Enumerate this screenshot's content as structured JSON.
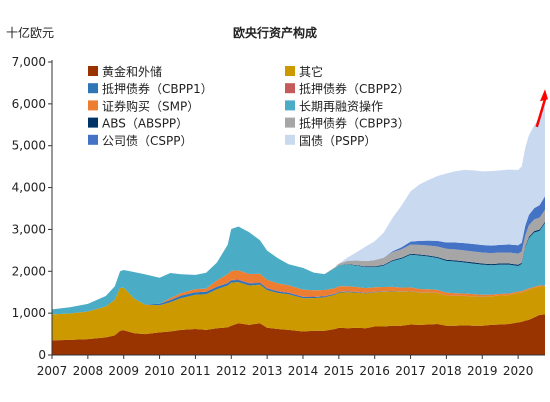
{
  "chart_data": {
    "type": "area",
    "stacked": true,
    "title": "欧央行资产构成",
    "unit_label": "十亿欧元",
    "xlim": [
      2007,
      2020.75
    ],
    "ylim": [
      0,
      7000
    ],
    "y_ticks": [
      0,
      1000,
      2000,
      3000,
      4000,
      5000,
      6000,
      7000
    ],
    "y_tick_labels": [
      "0",
      "1,000",
      "2,000",
      "3,000",
      "4,000",
      "5,000",
      "6,000",
      "7,000"
    ],
    "x_ticks": [
      2007,
      2008,
      2009,
      2010,
      2011,
      2012,
      2013,
      2014,
      2015,
      2016,
      2017,
      2018,
      2019,
      2020
    ],
    "x_tick_labels": [
      "2007",
      "2008",
      "2009",
      "2010",
      "2011",
      "2012",
      "2013",
      "2014",
      "2015",
      "2016",
      "2017",
      "2018",
      "2019",
      "2020"
    ],
    "grid": false,
    "legend_position": "top",
    "x": [
      2007.0,
      2007.5,
      2008.0,
      2008.5,
      2008.75,
      2008.9,
      2009.0,
      2009.3,
      2009.6,
      2010.0,
      2010.3,
      2010.6,
      2011.0,
      2011.3,
      2011.6,
      2011.9,
      2012.0,
      2012.2,
      2012.5,
      2012.8,
      2013.0,
      2013.3,
      2013.6,
      2014.0,
      2014.3,
      2014.6,
      2014.9,
      2015.0,
      2015.25,
      2015.5,
      2015.75,
      2016.0,
      2016.25,
      2016.5,
      2016.75,
      2017.0,
      2017.25,
      2017.5,
      2017.75,
      2018.0,
      2018.25,
      2018.5,
      2018.75,
      2019.0,
      2019.25,
      2019.5,
      2019.75,
      2020.0,
      2020.1,
      2020.2,
      2020.3,
      2020.45,
      2020.6,
      2020.75
    ],
    "series": [
      {
        "name": "黄金和外储",
        "color": "#993300",
        "values": [
          350,
          360,
          380,
          420,
          470,
          580,
          590,
          520,
          500,
          540,
          560,
          600,
          620,
          600,
          640,
          660,
          700,
          760,
          720,
          760,
          650,
          620,
          600,
          560,
          580,
          580,
          620,
          650,
          640,
          650,
          640,
          680,
          680,
          700,
          700,
          730,
          720,
          730,
          740,
          700,
          700,
          710,
          700,
          700,
          720,
          730,
          740,
          780,
          790,
          820,
          840,
          900,
          960,
          970
        ]
      },
      {
        "name": "其它",
        "color": "#CC9900",
        "values": [
          620,
          630,
          660,
          740,
          850,
          1020,
          1020,
          820,
          700,
          650,
          700,
          760,
          820,
          850,
          930,
          1000,
          1030,
          980,
          940,
          920,
          900,
          860,
          850,
          800,
          780,
          800,
          820,
          840,
          860,
          840,
          830,
          820,
          830,
          820,
          810,
          790,
          770,
          760,
          740,
          720,
          710,
          700,
          700,
          690,
          680,
          690,
          690,
          700,
          700,
          710,
          720,
          700,
          680,
          660
        ]
      },
      {
        "name": "抵押债券（CBPP1）",
        "color": "#2E75B6",
        "values": [
          0,
          0,
          0,
          0,
          0,
          0,
          0,
          0,
          5,
          35,
          50,
          58,
          60,
          60,
          60,
          58,
          55,
          52,
          48,
          44,
          40,
          37,
          34,
          30,
          26,
          23,
          20,
          18,
          16,
          14,
          12,
          10,
          9,
          8,
          7,
          6,
          5,
          4,
          3,
          2,
          2,
          1,
          1,
          1,
          0,
          0,
          0,
          0,
          0,
          0,
          0,
          0,
          0,
          0
        ]
      },
      {
        "name": "抵押债券（CBPP2）",
        "color": "#C55A5A",
        "values": [
          0,
          0,
          0,
          0,
          0,
          0,
          0,
          0,
          0,
          0,
          0,
          0,
          0,
          0,
          0,
          5,
          10,
          14,
          16,
          16,
          15,
          14,
          13,
          12,
          11,
          10,
          9,
          8,
          7,
          6,
          6,
          5,
          5,
          4,
          4,
          4,
          3,
          3,
          3,
          3,
          3,
          3,
          3,
          3,
          3,
          2,
          2,
          2,
          2,
          2,
          2,
          2,
          2,
          2
        ]
      },
      {
        "name": "证券购买（SMP）",
        "color": "#ED7D31",
        "values": [
          0,
          0,
          0,
          0,
          0,
          0,
          0,
          0,
          0,
          0,
          50,
          60,
          75,
          75,
          150,
          210,
          215,
          215,
          210,
          200,
          190,
          180,
          170,
          160,
          150,
          140,
          130,
          125,
          120,
          115,
          110,
          105,
          100,
          95,
          90,
          85,
          80,
          75,
          70,
          65,
          60,
          55,
          50,
          45,
          40,
          38,
          36,
          34,
          32,
          30,
          28,
          26,
          24,
          22
        ]
      },
      {
        "name": "长期再融资操作",
        "color": "#4BACC6",
        "values": [
          120,
          150,
          180,
          250,
          320,
          400,
          420,
          640,
          720,
          620,
          600,
          450,
          340,
          380,
          430,
          700,
          1000,
          1050,
          1000,
          800,
          700,
          600,
          500,
          520,
          420,
          380,
          480,
          500,
          520,
          510,
          500,
          480,
          510,
          620,
          690,
          780,
          800,
          780,
          760,
          760,
          760,
          740,
          730,
          720,
          700,
          700,
          690,
          610,
          650,
          1000,
          1200,
          1300,
          1300,
          1500
        ]
      },
      {
        "name": "ABS（ABSPP）",
        "color": "#003366",
        "values": [
          0,
          0,
          0,
          0,
          0,
          0,
          0,
          0,
          0,
          0,
          0,
          0,
          0,
          0,
          0,
          0,
          0,
          0,
          0,
          0,
          0,
          0,
          0,
          0,
          0,
          0,
          2,
          4,
          8,
          12,
          15,
          18,
          20,
          21,
          22,
          23,
          24,
          25,
          26,
          27,
          27,
          28,
          28,
          28,
          28,
          28,
          29,
          30,
          30,
          30,
          31,
          31,
          31,
          31
        ]
      },
      {
        "name": "抵押债券（CBPP3）",
        "color": "#A6A6A6",
        "values": [
          0,
          0,
          0,
          0,
          0,
          0,
          0,
          0,
          0,
          0,
          0,
          0,
          0,
          0,
          0,
          0,
          0,
          0,
          0,
          0,
          0,
          0,
          0,
          0,
          0,
          0,
          20,
          35,
          80,
          110,
          130,
          150,
          170,
          190,
          205,
          220,
          230,
          240,
          250,
          260,
          262,
          262,
          262,
          262,
          262,
          262,
          263,
          265,
          268,
          270,
          275,
          280,
          285,
          287
        ]
      },
      {
        "name": "公司债（CSPP）",
        "color": "#4472C4",
        "values": [
          0,
          0,
          0,
          0,
          0,
          0,
          0,
          0,
          0,
          0,
          0,
          0,
          0,
          0,
          0,
          0,
          0,
          0,
          0,
          0,
          0,
          0,
          0,
          0,
          0,
          0,
          0,
          0,
          0,
          0,
          0,
          0,
          0,
          20,
          45,
          70,
          95,
          115,
          135,
          150,
          165,
          175,
          178,
          178,
          180,
          182,
          190,
          200,
          210,
          230,
          250,
          270,
          300,
          320
        ]
      },
      {
        "name": "国债（PSPP）",
        "color": "#C9D9F0",
        "values": [
          0,
          0,
          0,
          0,
          0,
          0,
          0,
          0,
          0,
          0,
          0,
          0,
          0,
          0,
          0,
          0,
          0,
          0,
          0,
          0,
          0,
          0,
          0,
          0,
          0,
          0,
          0,
          0,
          80,
          200,
          350,
          450,
          600,
          800,
          1000,
          1200,
          1350,
          1450,
          1550,
          1650,
          1700,
          1750,
          1760,
          1760,
          1780,
          1780,
          1790,
          1800,
          1820,
          1860,
          1900,
          1980,
          2100,
          2200
        ]
      }
    ],
    "annotation": {
      "type": "arrow",
      "color": "#FF0000",
      "x_from": 2020.52,
      "y_from": 5450,
      "x_to": 2020.75,
      "y_to": 6300
    }
  }
}
